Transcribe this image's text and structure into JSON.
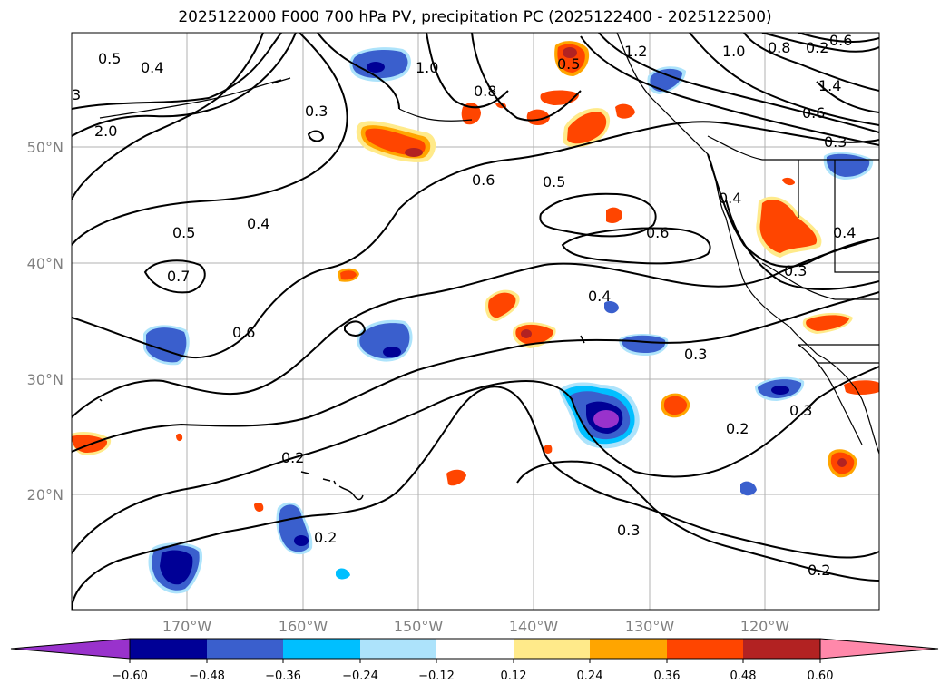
{
  "title": "2025122000 F000 700 hPa PV, precipitation PC (2025122400 - 2025122500)",
  "colors": {
    "pos_light": "#ffea8a",
    "pos_mid": "#ffa500",
    "pos_strong": "#ff4500",
    "pos_deep": "#b22222",
    "pos_max": "#ff88aa",
    "neg_light": "#ade3fb",
    "neg_mid": "#00bfff",
    "neg_strong": "#3a5fcd",
    "neg_deep": "#000096",
    "neg_max": "#9932cc"
  },
  "map": {
    "lat_labels": [
      "50°N",
      "40°N",
      "30°N",
      "20°N"
    ],
    "lon_labels": [
      "170°W",
      "160°W",
      "150°W",
      "140°W",
      "130°W",
      "120°W"
    ],
    "contour_labels": [
      "0.5",
      "0.4",
      "3",
      "2.0",
      "0.3",
      "1.0",
      "0.8",
      "1.2",
      "0.5",
      "1.0",
      "0.8",
      "0.2",
      "0.6",
      "1.4",
      "0.6",
      "0.3",
      "0.6",
      "0.5",
      "0.4",
      "0.5",
      "0.4",
      "0.6",
      "0.4",
      "0.7",
      "0.4",
      "0.3",
      "0.6",
      "0.3",
      "0.3",
      "0.2",
      "0.2",
      "0.2",
      "0.3",
      "0.2"
    ]
  },
  "colorbar": {
    "ticks": [
      "−0.60",
      "−0.48",
      "−0.36",
      "−0.24",
      "−0.12",
      "0.12",
      "0.24",
      "0.36",
      "0.48",
      "0.60"
    ],
    "boundaries": [
      -0.6,
      -0.48,
      -0.36,
      -0.24,
      -0.12,
      0.12,
      0.24,
      0.36,
      0.48,
      0.6
    ]
  }
}
